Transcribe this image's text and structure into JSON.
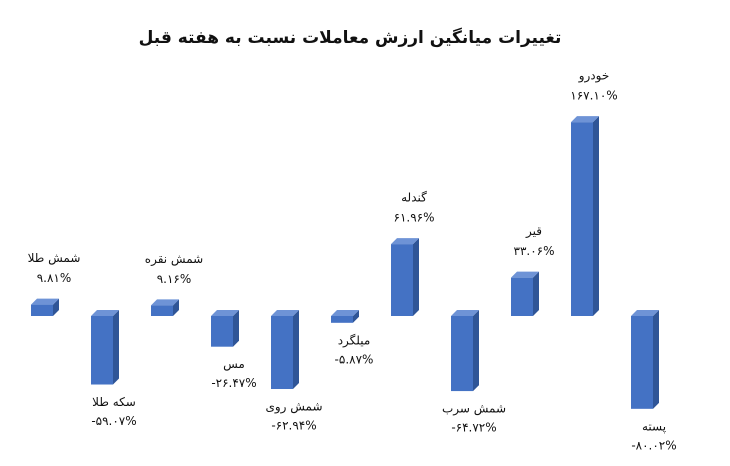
{
  "chart_data": {
    "type": "bar3d",
    "title": "تغییرات میانگین ارزش معاملات نسبت به هفته قبل",
    "categories": [
      "شمش طلا",
      "سکه طلا",
      "شمش نقره",
      "مس",
      "شمش روی",
      "میلگرد",
      "گندله",
      "شمش سرب",
      "قیر",
      "خودرو",
      "پسته"
    ],
    "values": [
      9.81,
      -59.07,
      9.16,
      -26.47,
      -62.94,
      -5.87,
      61.96,
      -64.72,
      33.06,
      167.1,
      -80.02
    ],
    "value_labels": [
      "۹.۸۱%",
      "-۵۹.۰۷%",
      "۹.۱۶%",
      "-۲۶.۴۷%",
      "-۶۲.۹۴%",
      "-۵.۸۷%",
      "۶۱.۹۶%",
      "-۶۴.۷۲%",
      "۳۳.۰۶%",
      "۱۶۷.۱۰%",
      "-۸۰.۰۲%"
    ],
    "color": "#4472c4"
  }
}
